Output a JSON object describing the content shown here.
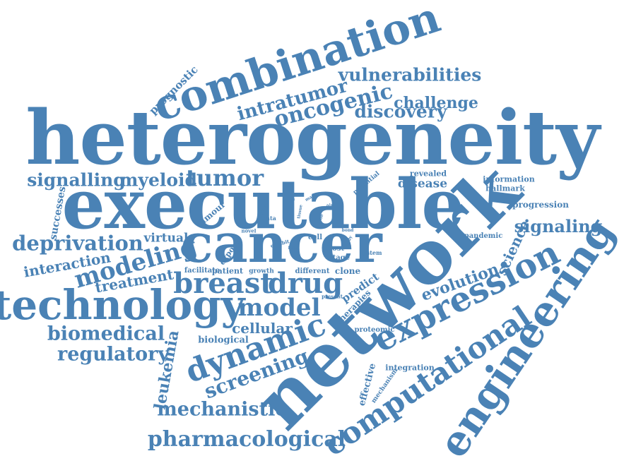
{
  "color": "#4a82b5",
  "words": {
    "heterogeneity": "heterogeneity",
    "executable": "executable",
    "network": "network",
    "cancer": "cancer",
    "combination": "combination",
    "technology": "technology",
    "engineering": "engineering",
    "expression": "expression",
    "computational": "computational",
    "dynamic": "dynamic",
    "breast": "breast",
    "drug": "drug",
    "model": "model",
    "modeling": "modeling",
    "tumor": "tumor",
    "oncogenic": "oncogenic",
    "intratumor": "intratumor",
    "vulnerabilities": "vulnerabilities",
    "discovery": "discovery",
    "challenge": "challenge",
    "signalling": "signalling",
    "myeloid": "myeloid",
    "deprivation": "deprivation",
    "interaction": "interaction",
    "treatment": "treatment",
    "virtual": "virtual",
    "biomedical": "biomedical",
    "regulatory": "regulatory",
    "leukemia": "leukemia",
    "screening": "screening",
    "mechanistic": "mechanistic",
    "pharmacological": "pharmacological",
    "cellular": "cellular",
    "biological": "biological",
    "signaling": "signaling",
    "evolution": "evolution",
    "science": "science",
    "progression": "progression",
    "information": "information",
    "hallmark": "hallmark",
    "pandemic": "pandemic",
    "disease": "disease",
    "revealed": "revealed",
    "potential": "potential",
    "prognostic": "prognostic",
    "successes": "successes",
    "tumour": "tumour",
    "expose": "expose",
    "facilitate": "facilitate",
    "patient": "patient",
    "growth": "growth",
    "different": "different",
    "clone": "clone",
    "predict": "predict",
    "therapies": "therapies",
    "proteomic": "proteomic",
    "integration": "integration",
    "effective": "effective",
    "mechanism": "mechanism",
    "host": "host",
    "stage": "stage",
    "system": "system",
    "cell": "cell",
    "data": "data",
    "power": "power",
    "novel": "novel",
    "severe": "severe",
    "present": "present",
    "exhibit": "exhibit",
    "study": "study",
    "bond": "bond",
    "wide": "wide",
    "field": "field",
    "aim": "aim",
    "mass": "mass",
    "tissue": "tissue"
  }
}
